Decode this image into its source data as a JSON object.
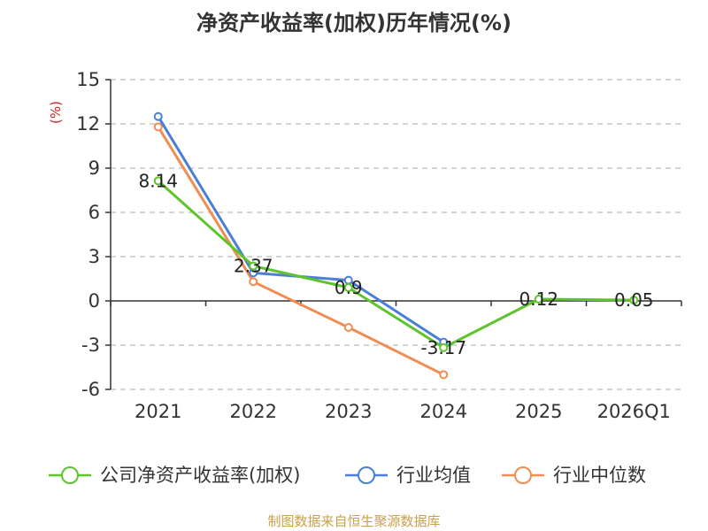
{
  "chart_data": {
    "type": "line",
    "title": "净资产收益率(加权)历年情况(%)",
    "ylabel": "(%)",
    "xlabel": "",
    "categories": [
      "2021",
      "2022",
      "2023",
      "2024",
      "2025",
      "2026Q1"
    ],
    "ylim": [
      -6,
      15
    ],
    "yticks": [
      15,
      12,
      9,
      6,
      3,
      0,
      -3,
      -6
    ],
    "grid": true,
    "legend_position": "bottom",
    "series": [
      {
        "name": "公司净资产收益率(加权)",
        "color": "#5ec42c",
        "values": [
          8.14,
          2.37,
          0.9,
          -3.17,
          0.12,
          0.05
        ],
        "labels": [
          "8.14",
          "2.37",
          "0.9",
          "-3.17",
          "0.12",
          "0.05"
        ]
      },
      {
        "name": "行业均值",
        "color": "#4a7fd8",
        "values": [
          12.5,
          1.9,
          1.4,
          -2.8,
          null,
          null
        ]
      },
      {
        "name": "行业中位数",
        "color": "#f28d52",
        "values": [
          11.8,
          1.3,
          -1.8,
          -5.0,
          null,
          null
        ]
      }
    ]
  },
  "source_note": "制图数据来自恒生聚源数据库",
  "colors": {
    "axis": "#333333",
    "grid": "#bbbbbb",
    "unit_label": "#cc2222"
  }
}
